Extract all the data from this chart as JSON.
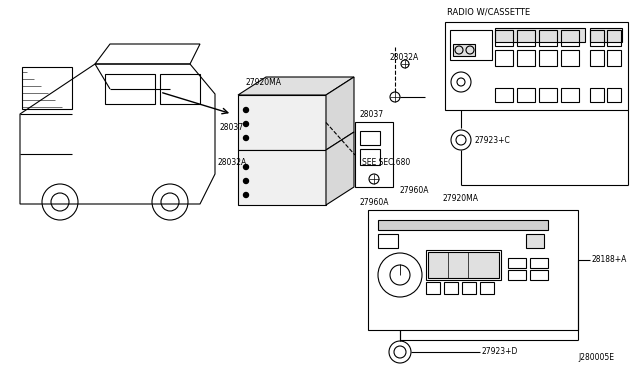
{
  "background_color": "#ffffff",
  "line_color": "#000000",
  "fig_width": 6.4,
  "fig_height": 3.72,
  "dpi": 100,
  "labels": {
    "radio_w_cassette": "RADIO W/CASSETTE",
    "see_sec": "SEE SEC.680",
    "diagram_code": "J280005E",
    "part_27920MA_1": "27920MA",
    "part_27920MA_2": "27920MA",
    "part_28037_1": "28037",
    "part_28037_2": "28037",
    "part_28032A_1": "28032A",
    "part_28032A_2": "28032A",
    "part_27960A_1": "27960A",
    "part_27960A_2": "27960A",
    "part_27923C": "27923+C",
    "part_27923D": "27923+D",
    "part_28188A": "28188+A"
  }
}
